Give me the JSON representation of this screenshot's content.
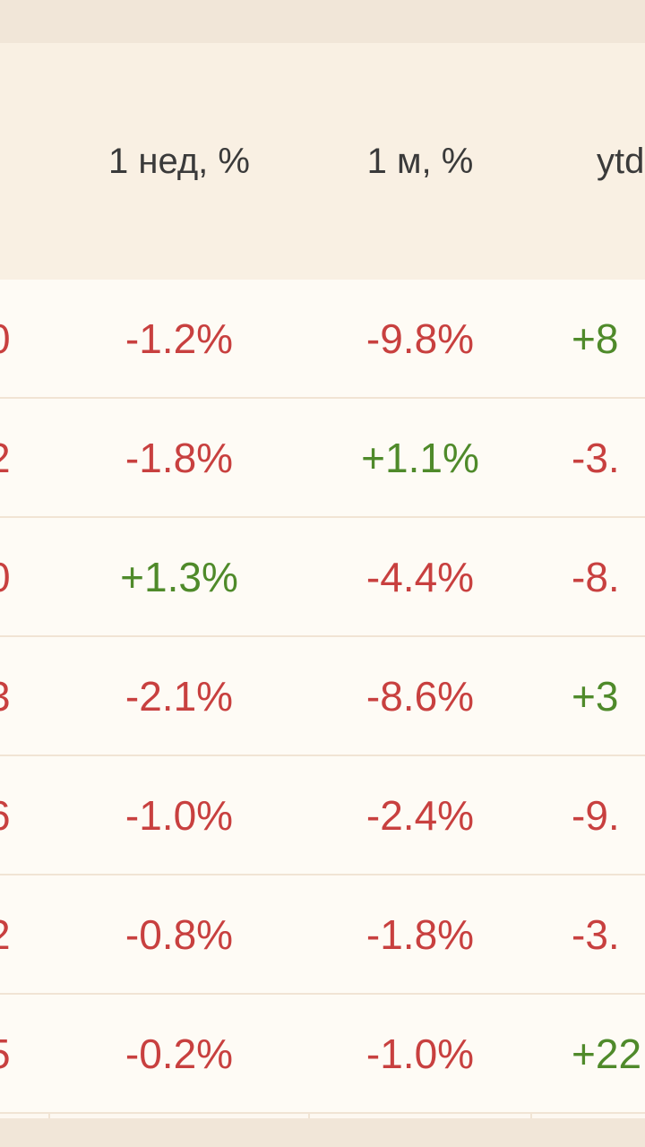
{
  "table": {
    "headers": [
      "",
      "1 нед, %",
      "1 м, %",
      "ytd"
    ],
    "rows": [
      {
        "c0": "0",
        "week": "-1.2%",
        "month": "-9.8%",
        "ytd": "+8"
      },
      {
        "c0": "2",
        "week": "-1.8%",
        "month": "+1.1%",
        "ytd": "-3."
      },
      {
        "c0": "0",
        "week": "+1.3%",
        "month": "-4.4%",
        "ytd": "-8."
      },
      {
        "c0": "3",
        "week": "-2.1%",
        "month": "-8.6%",
        "ytd": "+3"
      },
      {
        "c0": "6",
        "week": "-1.0%",
        "month": "-2.4%",
        "ytd": "-9."
      },
      {
        "c0": "2",
        "week": "-0.8%",
        "month": "-1.8%",
        "ytd": "-3."
      },
      {
        "c0": "5",
        "week": "-0.2%",
        "month": "-1.0%",
        "ytd": "+22"
      }
    ]
  },
  "colors": {
    "negative": "#c8403f",
    "positive": "#4f8a2a",
    "header_bg": "#f9f0e3",
    "row_bg": "#fefbf5"
  }
}
